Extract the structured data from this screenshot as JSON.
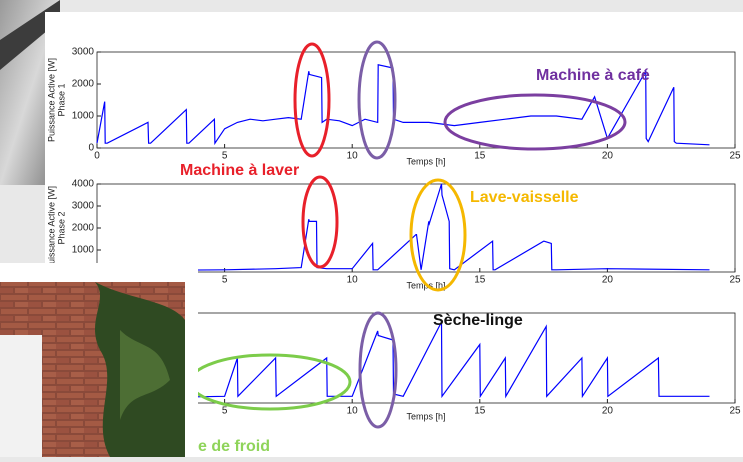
{
  "chart_data": [
    {
      "type": "line",
      "ylabel": [
        "Puissance Active [W]",
        "Phase 1"
      ],
      "xlabel": "Temps [h]",
      "color": "#0000ff",
      "xlim": [
        0,
        25
      ],
      "xticks": [
        0,
        5,
        10,
        15,
        20,
        25
      ],
      "ylim": [
        0,
        3000
      ],
      "yticks": [
        0,
        1000,
        2000,
        3000
      ],
      "x": [
        0,
        0.3,
        0.32,
        0.4,
        2.0,
        2.02,
        2.1,
        3.5,
        3.52,
        3.6,
        4.6,
        4.62,
        5.0,
        5.5,
        6.0,
        6.5,
        7.0,
        7.5,
        8.0,
        8.3,
        8.32,
        8.8,
        8.82,
        9.0,
        9.5,
        10.0,
        10.5,
        11.0,
        11.02,
        11.6,
        11.62,
        12.0,
        13.0,
        14.0,
        15.0,
        16.0,
        17.0,
        18.0,
        19.0,
        19.5,
        20.0,
        21.5,
        21.52,
        21.6,
        22.6,
        22.62,
        22.7,
        24.0
      ],
      "values": [
        150,
        1450,
        150,
        150,
        800,
        150,
        150,
        1200,
        150,
        150,
        900,
        150,
        600,
        800,
        900,
        850,
        900,
        950,
        900,
        2400,
        2300,
        2200,
        800,
        900,
        850,
        700,
        900,
        800,
        2600,
        2500,
        900,
        800,
        800,
        700,
        800,
        900,
        1000,
        1000,
        900,
        1600,
        300,
        2400,
        300,
        200,
        1900,
        200,
        150,
        100
      ]
    },
    {
      "type": "line",
      "ylabel": [
        "Puissance Active [W]",
        "Phase 2"
      ],
      "xlabel": "Temps [h]",
      "color": "#0000ff",
      "xlim": [
        0,
        25
      ],
      "xticks": [
        5,
        10,
        15,
        20,
        25
      ],
      "ylim": [
        0,
        4000
      ],
      "yticks": [
        1000,
        2000,
        3000,
        4000
      ],
      "x": [
        0,
        3,
        5,
        7,
        8,
        8.3,
        8.32,
        8.6,
        8.62,
        9,
        10,
        10.8,
        10.82,
        11,
        12.5,
        12.52,
        12.7,
        13.0,
        13.02,
        13.5,
        13.52,
        13.8,
        13.82,
        14,
        15.5,
        15.52,
        15.6,
        17.5,
        17.52,
        17.8,
        17.82,
        18,
        20,
        24
      ],
      "values": [
        50,
        80,
        100,
        150,
        200,
        2400,
        2300,
        2300,
        200,
        150,
        150,
        1300,
        100,
        100,
        1700,
        1700,
        100,
        2300,
        2200,
        4000,
        3500,
        2300,
        150,
        100,
        1400,
        100,
        100,
        1400,
        1400,
        1300,
        100,
        100,
        150,
        100
      ]
    },
    {
      "type": "line",
      "xlabel": "Temps [h]",
      "color": "#0000ff",
      "xlim": [
        0,
        25
      ],
      "xticks": [
        5,
        10,
        15,
        20,
        25
      ],
      "ylim": [
        0,
        2000
      ],
      "x": [
        0,
        5,
        5.5,
        5.52,
        7,
        7.02,
        9,
        9.02,
        10,
        11,
        11.02,
        11.6,
        11.62,
        12,
        13.5,
        13.52,
        15,
        15.02,
        16,
        16.02,
        17.6,
        17.62,
        19,
        19.02,
        20,
        20.02,
        22,
        22.02,
        24
      ],
      "values": [
        100,
        150,
        1000,
        150,
        1000,
        150,
        1000,
        150,
        150,
        1600,
        1500,
        1400,
        200,
        150,
        1800,
        150,
        1300,
        150,
        1000,
        150,
        1700,
        150,
        1000,
        150,
        1000,
        150,
        1000,
        150,
        150
      ]
    }
  ],
  "annotations": [
    "Machine à café",
    "Machine à laver",
    "Lave-vaisselle",
    "Sèche-linge",
    "e de froid"
  ]
}
